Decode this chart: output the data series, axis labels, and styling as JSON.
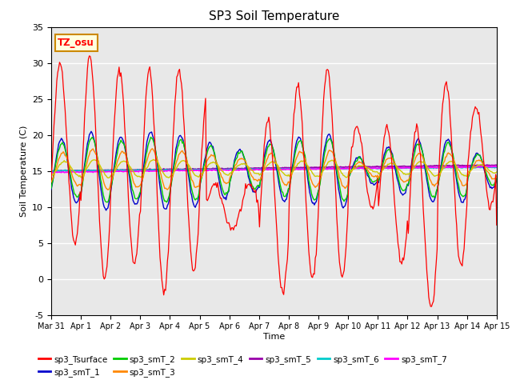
{
  "title": "SP3 Soil Temperature",
  "ylabel": "Soil Temperature (C)",
  "xlabel": "Time",
  "ylim": [
    -5,
    35
  ],
  "annotation": "TZ_osu",
  "xtick_labels": [
    "Mar 31",
    "Apr 1",
    "Apr 2",
    "Apr 3",
    "Apr 4",
    "Apr 5",
    "Apr 6",
    "Apr 7",
    "Apr 8",
    "Apr 9",
    "Apr 10",
    "Apr 11",
    "Apr 12",
    "Apr 13",
    "Apr 14",
    "Apr 15"
  ],
  "ytick_labels": [
    -5,
    0,
    5,
    10,
    15,
    20,
    25,
    30,
    35
  ],
  "series_colors": {
    "sp3_Tsurface": "#FF0000",
    "sp3_smT_1": "#0000CC",
    "sp3_smT_2": "#00CC00",
    "sp3_smT_3": "#FF8800",
    "sp3_smT_4": "#CCCC00",
    "sp3_smT_5": "#9900AA",
    "sp3_smT_6": "#00CCCC",
    "sp3_smT_7": "#FF00FF"
  },
  "legend_labels": [
    "sp3_Tsurface",
    "sp3_smT_1",
    "sp3_smT_2",
    "sp3_smT_3",
    "sp3_smT_4",
    "sp3_smT_5",
    "sp3_smT_6",
    "sp3_smT_7"
  ],
  "background_color": "#E8E8E8",
  "figure_background": "#FFFFFF",
  "figsize": [
    6.4,
    4.8
  ],
  "dpi": 100
}
